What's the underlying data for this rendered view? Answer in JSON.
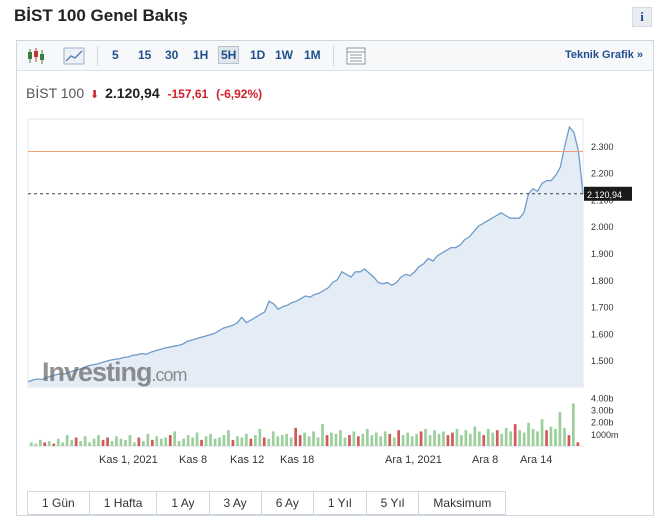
{
  "page": {
    "title": "BİST 100 Genel Bakış",
    "info_label": "i"
  },
  "toolbar": {
    "intervals": [
      "5",
      "15",
      "30",
      "1H",
      "5H",
      "1D",
      "1W",
      "1M"
    ],
    "active_interval": "5H",
    "teknik_label": "Teknik Grafik »"
  },
  "quote": {
    "name": "BİST 100",
    "price": "2.120,94",
    "change": "-157,61",
    "change_pct": "(-6,92%)"
  },
  "chart_data": {
    "type": "area",
    "watermark": "Investing.com",
    "price_ticks": [
      "2.300",
      "2.200",
      "2.100",
      "2.000",
      "1.900",
      "1.800",
      "1.700",
      "1.600",
      "1.500"
    ],
    "price_tick_values": [
      2300,
      2200,
      2100,
      2000,
      1900,
      1800,
      1700,
      1600,
      1500
    ],
    "current_price_label": "2.120,94",
    "current_price": 2120.94,
    "previous_close": 2278.55,
    "volume_ticks": [
      "4.00b",
      "3.00b",
      "2.00b",
      "1000m"
    ],
    "volume_tick_values": [
      4000,
      3000,
      2000,
      1000
    ],
    "x_tick_labels": [
      "Kas 1, 2021",
      "Kas 8",
      "Kas 12",
      "Kas 18",
      "Ara 1, 2021",
      "Ara 8",
      "Ara 14"
    ],
    "price_series": [
      1420,
      1425,
      1430,
      1428,
      1435,
      1440,
      1445,
      1450,
      1448,
      1455,
      1460,
      1465,
      1470,
      1478,
      1482,
      1485,
      1490,
      1495,
      1500,
      1503,
      1505,
      1510,
      1512,
      1518,
      1520,
      1525,
      1522,
      1530,
      1535,
      1540,
      1545,
      1548,
      1552,
      1555,
      1560,
      1570,
      1575,
      1580,
      1585,
      1590,
      1595,
      1600,
      1610,
      1620,
      1625,
      1630,
      1640,
      1660,
      1640,
      1650,
      1660,
      1670,
      1680,
      1720,
      1710,
      1690,
      1700,
      1705,
      1715,
      1720,
      1730,
      1740,
      1735,
      1745,
      1750,
      1760,
      1770,
      1790,
      1800,
      1830,
      1820,
      1810,
      1830,
      1830,
      1840,
      1825,
      1810,
      1790,
      1785,
      1790,
      1780,
      1790,
      1810,
      1820,
      1815,
      1830,
      1850,
      1860,
      1880,
      1870,
      1890,
      1900,
      1910,
      1920,
      1920,
      1930,
      1950,
      1960,
      1980,
      2000,
      2010,
      2020,
      2030,
      2040,
      2050,
      2040,
      2030,
      2030,
      2030,
      2050,
      2120,
      2140,
      2130,
      2160,
      2170,
      2170,
      2190,
      2220,
      2300,
      2370,
      2350,
      2280,
      2120
    ],
    "volume_series": [
      300,
      200,
      500,
      300,
      400,
      200,
      600,
      300,
      900,
      500,
      700,
      400,
      800,
      300,
      600,
      900,
      500,
      700,
      400,
      800,
      600,
      500,
      900,
      300,
      700,
      400,
      1000,
      500,
      800,
      600,
      700,
      900,
      1200,
      400,
      600,
      900,
      700,
      1100,
      500,
      800,
      1000,
      600,
      700,
      900,
      1300,
      500,
      800,
      700,
      1000,
      600,
      900,
      1400,
      700,
      600,
      1200,
      800,
      900,
      1000,
      700,
      1500,
      900,
      1100,
      800,
      1200,
      700,
      1800,
      900,
      1100,
      1000,
      1300,
      700,
      900,
      1200,
      800,
      1000,
      1400,
      900,
      1100,
      800,
      1200,
      1000,
      700,
      1300,
      900,
      1100,
      800,
      1000,
      1200,
      1400,
      900,
      1300,
      1000,
      1200,
      900,
      1100,
      1400,
      900,
      1300,
      1000,
      1600,
      1200,
      900,
      1400,
      1100,
      1300,
      1000,
      1500,
      1200,
      1800,
      1300,
      1100,
      1900,
      1400,
      1200,
      2200,
      1300,
      1600,
      1400,
      2800,
      1500,
      900,
      3500,
      300
    ],
    "volume_colors": "mostly green; red on down periods"
  },
  "range_buttons": [
    "1 Gün",
    "1 Hafta",
    "1 Ay",
    "3 Ay",
    "6 Ay",
    "1 Yıl",
    "5 Yıl",
    "Maksimum"
  ]
}
